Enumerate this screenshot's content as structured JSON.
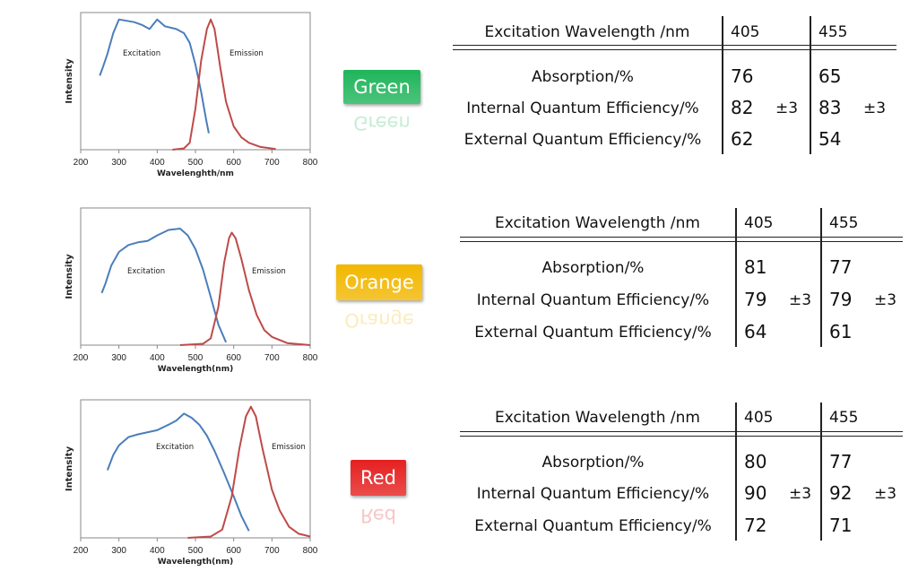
{
  "chart_data": [
    {
      "type": "line",
      "xlabel": "Wavelenghth/nm",
      "ylabel": "Intensity",
      "xlim": [
        200,
        800
      ],
      "xticks": [
        200,
        300,
        400,
        500,
        600,
        700,
        800
      ],
      "grid": false,
      "annotations": [
        "Excitation",
        "Emission"
      ],
      "series": [
        {
          "name": "Excitation",
          "color": "#4a7ebb",
          "points": [
            [
              250,
              0.54
            ],
            [
              258,
              0.6
            ],
            [
              270,
              0.7
            ],
            [
              285,
              0.85
            ],
            [
              300,
              0.95
            ],
            [
              320,
              0.94
            ],
            [
              340,
              0.93
            ],
            [
              360,
              0.91
            ],
            [
              380,
              0.88
            ],
            [
              400,
              0.95
            ],
            [
              420,
              0.9
            ],
            [
              450,
              0.88
            ],
            [
              470,
              0.85
            ],
            [
              485,
              0.78
            ],
            [
              500,
              0.62
            ],
            [
              515,
              0.42
            ],
            [
              528,
              0.22
            ],
            [
              535,
              0.12
            ]
          ]
        },
        {
          "name": "Emission",
          "color": "#be4b48",
          "points": [
            [
              440,
              0
            ],
            [
              470,
              0.01
            ],
            [
              485,
              0.05
            ],
            [
              500,
              0.3
            ],
            [
              515,
              0.65
            ],
            [
              530,
              0.88
            ],
            [
              540,
              0.95
            ],
            [
              550,
              0.88
            ],
            [
              565,
              0.6
            ],
            [
              580,
              0.35
            ],
            [
              600,
              0.17
            ],
            [
              620,
              0.09
            ],
            [
              640,
              0.05
            ],
            [
              670,
              0.02
            ],
            [
              710,
              0.005
            ]
          ]
        }
      ]
    },
    {
      "type": "line",
      "xlabel": "Wavelength(nm)",
      "ylabel": "Intensity",
      "xlim": [
        200,
        800
      ],
      "xticks": [
        200,
        300,
        400,
        500,
        600,
        700,
        800
      ],
      "grid": false,
      "annotations": [
        "Excitation",
        "Emission"
      ],
      "series": [
        {
          "name": "Excitation",
          "color": "#4a7ebb",
          "points": [
            [
              255,
              0.38
            ],
            [
              265,
              0.45
            ],
            [
              280,
              0.58
            ],
            [
              300,
              0.68
            ],
            [
              325,
              0.73
            ],
            [
              350,
              0.75
            ],
            [
              375,
              0.76
            ],
            [
              400,
              0.8
            ],
            [
              430,
              0.84
            ],
            [
              460,
              0.85
            ],
            [
              480,
              0.8
            ],
            [
              500,
              0.7
            ],
            [
              520,
              0.55
            ],
            [
              540,
              0.35
            ],
            [
              560,
              0.15
            ],
            [
              580,
              0.02
            ]
          ]
        },
        {
          "name": "Emission",
          "color": "#be4b48",
          "points": [
            [
              460,
              0
            ],
            [
              520,
              0.01
            ],
            [
              540,
              0.05
            ],
            [
              560,
              0.28
            ],
            [
              575,
              0.6
            ],
            [
              588,
              0.78
            ],
            [
              595,
              0.82
            ],
            [
              605,
              0.78
            ],
            [
              620,
              0.63
            ],
            [
              640,
              0.4
            ],
            [
              660,
              0.22
            ],
            [
              680,
              0.11
            ],
            [
              700,
              0.06
            ],
            [
              740,
              0.015
            ],
            [
              800,
              0
            ]
          ]
        }
      ]
    },
    {
      "type": "line",
      "xlabel": "Wavelength(nm)",
      "ylabel": "Intensity",
      "xlim": [
        200,
        800
      ],
      "xticks": [
        200,
        300,
        400,
        500,
        600,
        700,
        800
      ],
      "grid": false,
      "annotations": [
        "Excitation",
        "Emission"
      ],
      "series": [
        {
          "name": "Excitation",
          "color": "#4a7ebb",
          "points": [
            [
              270,
              0.49
            ],
            [
              285,
              0.6
            ],
            [
              300,
              0.67
            ],
            [
              325,
              0.73
            ],
            [
              350,
              0.75
            ],
            [
              400,
              0.78
            ],
            [
              430,
              0.82
            ],
            [
              450,
              0.85
            ],
            [
              470,
              0.9
            ],
            [
              490,
              0.87
            ],
            [
              510,
              0.82
            ],
            [
              530,
              0.74
            ],
            [
              550,
              0.63
            ],
            [
              575,
              0.47
            ],
            [
              600,
              0.3
            ],
            [
              620,
              0.16
            ],
            [
              640,
              0.05
            ]
          ]
        },
        {
          "name": "Emission",
          "color": "#be4b48",
          "points": [
            [
              480,
              0
            ],
            [
              540,
              0.01
            ],
            [
              570,
              0.06
            ],
            [
              595,
              0.3
            ],
            [
              615,
              0.65
            ],
            [
              632,
              0.88
            ],
            [
              645,
              0.95
            ],
            [
              658,
              0.88
            ],
            [
              675,
              0.65
            ],
            [
              700,
              0.35
            ],
            [
              720,
              0.2
            ],
            [
              745,
              0.08
            ],
            [
              770,
              0.03
            ],
            [
              800,
              0.01
            ]
          ]
        }
      ]
    }
  ],
  "labels": [
    {
      "text": "Green",
      "color": "#1fb55a"
    },
    {
      "text": "Orange",
      "color": "#f2b700"
    },
    {
      "text": "Red",
      "color": "#e52020"
    }
  ],
  "tables": [
    {
      "header": "Excitation Wavelength /nm",
      "cols": [
        "405",
        "455"
      ],
      "rows": [
        {
          "label": "Absorption/%",
          "v1": "76",
          "e1": "",
          "v2": "65",
          "e2": ""
        },
        {
          "label": "Internal Quantum Efficiency/%",
          "v1": "82",
          "e1": "±3",
          "v2": "83",
          "e2": "±3"
        },
        {
          "label": "External Quantum Efficiency/%",
          "v1": "62",
          "e1": "",
          "v2": "54",
          "e2": ""
        }
      ]
    },
    {
      "header": "Excitation Wavelength /nm",
      "cols": [
        "405",
        "455"
      ],
      "rows": [
        {
          "label": "Absorption/%",
          "v1": "81",
          "e1": "",
          "v2": "77",
          "e2": ""
        },
        {
          "label": "Internal Quantum Efficiency/%",
          "v1": "79",
          "e1": "±3",
          "v2": "79",
          "e2": "±3"
        },
        {
          "label": "External Quantum Efficiency/%",
          "v1": "64",
          "e1": "",
          "v2": "61",
          "e2": ""
        }
      ]
    },
    {
      "header": "Excitation Wavelength /nm",
      "cols": [
        "405",
        "455"
      ],
      "rows": [
        {
          "label": "Absorption/%",
          "v1": "80",
          "e1": "",
          "v2": "77",
          "e2": ""
        },
        {
          "label": "Internal Quantum Efficiency/%",
          "v1": "90",
          "e1": "±3",
          "v2": "92",
          "e2": "±3"
        },
        {
          "label": "External Quantum Efficiency/%",
          "v1": "72",
          "e1": "",
          "v2": "71",
          "e2": ""
        }
      ]
    }
  ]
}
